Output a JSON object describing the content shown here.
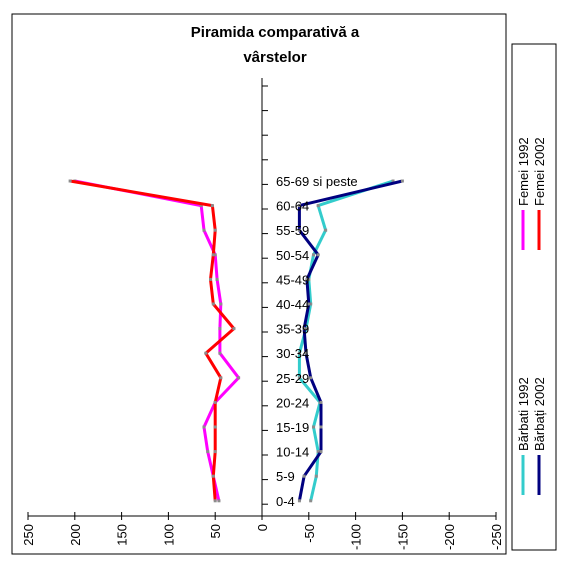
{
  "chart_data": {
    "type": "line",
    "title": "Piramida comparativă a vârstelor",
    "title_lines": [
      "Piramida comparativă a",
      "vârstelor"
    ],
    "categories": [
      "0-4",
      "5-9",
      "10-14",
      "15-19",
      "20-24",
      "25-29",
      "30-34",
      "35-39",
      "40-44",
      "45-49",
      "50-54",
      "55-59",
      "60-64",
      "65-69 si peste"
    ],
    "category_labels": [
      "0-4",
      "5-9",
      "10-14",
      "15-19",
      "20-24",
      "25-29",
      "30-34",
      "35-39",
      "40-44",
      "45-49",
      "50-54",
      "55-59",
      "60-64",
      "65-69 si peste"
    ],
    "xlim": [
      250,
      -250
    ],
    "x_ticks": [
      250,
      200,
      150,
      100,
      50,
      0,
      -50,
      -100,
      -150,
      -200,
      -250
    ],
    "x_tick_labels": [
      "250",
      "200",
      "150",
      "100",
      "50",
      "0",
      "-50",
      "-100",
      "-150",
      "-200",
      "-250"
    ],
    "grid": false,
    "series": [
      {
        "name": "Femei 1992",
        "color": "#ff00ff",
        "values": [
          46,
          52,
          58,
          62,
          50,
          25,
          45,
          45,
          44,
          48,
          50,
          62,
          65,
          200
        ]
      },
      {
        "name": "Femei 2002",
        "color": "#ff0000",
        "values": [
          50,
          52,
          50,
          50,
          50,
          44,
          60,
          30,
          52,
          55,
          52,
          50,
          53,
          205
        ]
      },
      {
        "name": "Bărbati 1992",
        "color": "#33cccc",
        "values": [
          -52,
          -58,
          -60,
          -55,
          -62,
          -40,
          -40,
          -47,
          -52,
          -50,
          -55,
          -68,
          -60,
          -140
        ]
      },
      {
        "name": "Bărbați 2002",
        "color": "#000080",
        "values": [
          -40,
          -45,
          -63,
          -63,
          -63,
          -52,
          -47,
          -45,
          -50,
          -48,
          -60,
          -40,
          -40,
          -150
        ]
      }
    ],
    "legend": [
      {
        "group": "top",
        "entries": [
          "Femei 1992",
          "Femei 2002"
        ]
      },
      {
        "group": "bottom",
        "entries": [
          "Bărbati 1992",
          "Bărbați 2002"
        ]
      }
    ],
    "legend_placement": "right",
    "colors": {
      "axis": "#000000",
      "marker": "#8c8c8c",
      "background": "#ffffff"
    }
  }
}
